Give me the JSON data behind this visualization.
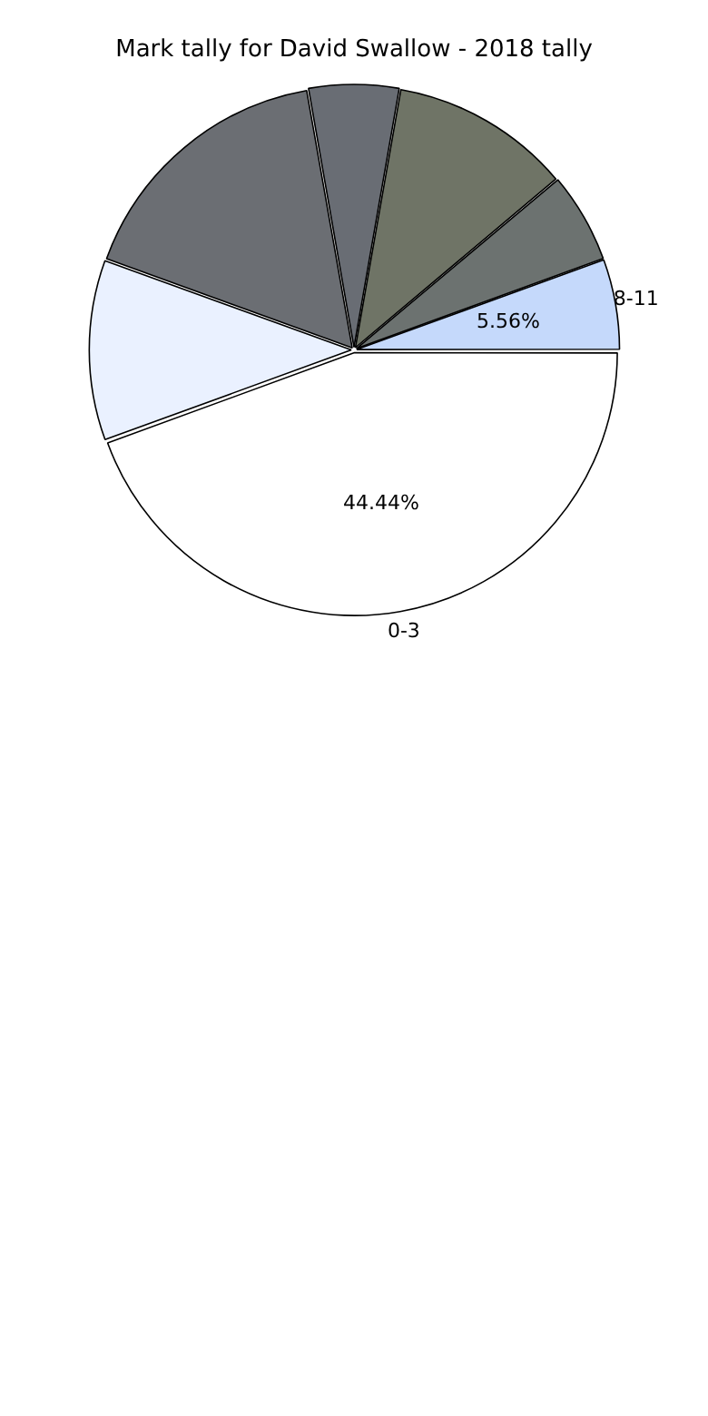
{
  "chart_data": {
    "type": "pie",
    "title": "Mark tally for David Swallow - 2018 tally",
    "categories": [
      "0-3",
      null,
      null,
      null,
      null,
      null,
      "8-11"
    ],
    "values": [
      44.44,
      11.11,
      16.67,
      5.56,
      11.11,
      5.56,
      5.56
    ],
    "colors": [
      "#ffffff",
      "#eaf1ff",
      "#6b6e73",
      "#696d74",
      "#6f7466",
      "#6c7270",
      "#c5d9fb"
    ],
    "value_labels": [
      "44.44%",
      null,
      null,
      null,
      null,
      null,
      "5.56%"
    ],
    "legend": false
  }
}
